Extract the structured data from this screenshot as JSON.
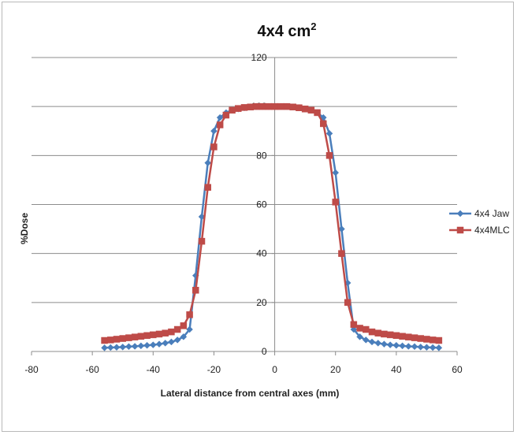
{
  "chart_data": {
    "type": "line",
    "title": "4x4 cm",
    "title_superscript": "2",
    "xlabel": "Lateral distance  from central axes (mm)",
    "ylabel": "%Dose",
    "xlim": [
      -80,
      60
    ],
    "ylim": [
      0,
      120
    ],
    "x_ticks": [
      -80,
      -60,
      -40,
      -20,
      0,
      20,
      40,
      60
    ],
    "y_ticks": [
      0,
      20,
      40,
      60,
      80,
      100,
      120
    ],
    "grid": "horizontal",
    "legend_position": "right",
    "series": [
      {
        "name": "4x4 Jaw",
        "color": "#4a7ebb",
        "marker": "diamond",
        "x": [
          -56,
          -54,
          -52,
          -50,
          -48,
          -46,
          -44,
          -42,
          -40,
          -38,
          -36,
          -34,
          -32,
          -30,
          -28,
          -26,
          -24,
          -22,
          -20,
          -18,
          -16,
          -14,
          -12,
          -10,
          -8,
          -6,
          -4,
          -2,
          0,
          2,
          4,
          6,
          8,
          10,
          12,
          14,
          16,
          18,
          20,
          22,
          24,
          26,
          28,
          30,
          32,
          34,
          36,
          38,
          40,
          42,
          44,
          46,
          48,
          50,
          52,
          54
        ],
        "values": [
          1.5,
          1.6,
          1.7,
          1.8,
          2.0,
          2.1,
          2.3,
          2.5,
          2.7,
          3.0,
          3.4,
          3.9,
          4.7,
          6.0,
          9.0,
          31,
          55,
          77,
          90,
          95.5,
          97.5,
          98.5,
          99,
          99.5,
          99.8,
          100,
          100,
          100,
          100,
          100,
          100,
          99.8,
          99.5,
          99,
          98.5,
          97.5,
          95.5,
          89,
          73,
          50,
          28,
          9.0,
          6.0,
          4.7,
          3.9,
          3.4,
          3.0,
          2.7,
          2.5,
          2.3,
          2.1,
          2.0,
          1.8,
          1.7,
          1.6,
          1.5
        ]
      },
      {
        "name": "4x4MLC",
        "color": "#be4b48",
        "marker": "square",
        "x": [
          -56,
          -54,
          -52,
          -50,
          -48,
          -46,
          -44,
          -42,
          -40,
          -38,
          -36,
          -34,
          -32,
          -30,
          -28,
          -26,
          -24,
          -22,
          -20,
          -18,
          -16,
          -14,
          -12,
          -10,
          -8,
          -6,
          -4,
          -2,
          0,
          2,
          4,
          6,
          8,
          10,
          12,
          14,
          16,
          18,
          20,
          22,
          24,
          26,
          28,
          30,
          32,
          34,
          36,
          38,
          40,
          42,
          44,
          46,
          48,
          50,
          52,
          54
        ],
        "values": [
          4.5,
          4.7,
          5.0,
          5.3,
          5.6,
          5.9,
          6.2,
          6.5,
          6.8,
          7.1,
          7.5,
          8.0,
          9.0,
          10.5,
          15,
          25,
          45,
          67,
          83.5,
          92.5,
          96.5,
          98.5,
          99.2,
          99.6,
          99.8,
          100,
          100,
          100,
          100,
          100,
          100,
          99.8,
          99.5,
          99,
          98.5,
          97.5,
          93,
          80,
          61,
          40,
          20,
          11,
          9.5,
          9.0,
          8.0,
          7.5,
          7.1,
          6.8,
          6.5,
          6.2,
          5.9,
          5.6,
          5.3,
          5.0,
          4.7,
          4.5
        ]
      }
    ]
  }
}
